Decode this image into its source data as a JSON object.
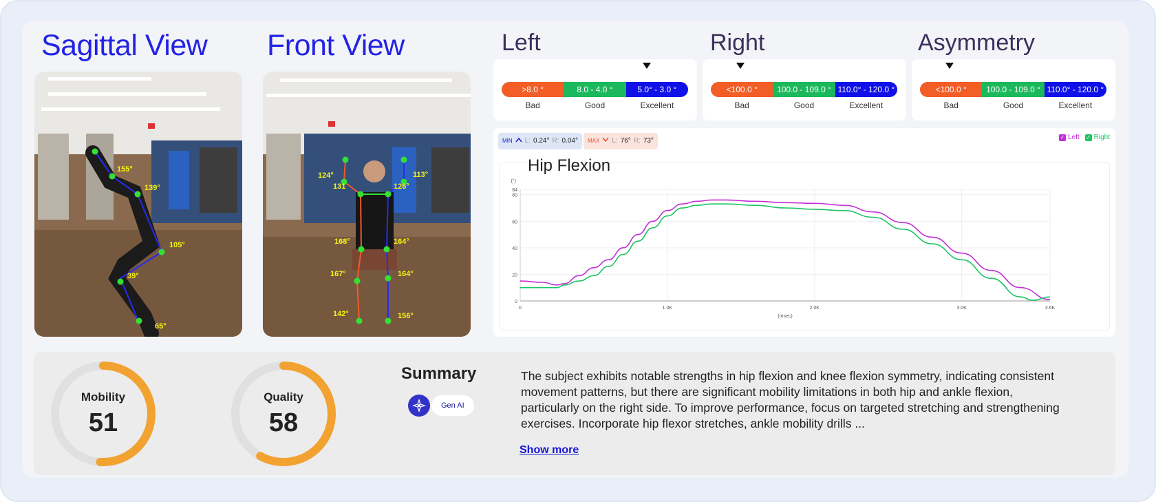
{
  "views": {
    "sagittal_title": "Sagittal View",
    "front_title": "Front View",
    "sagittal_angles": [
      "155°",
      "139°",
      "105°",
      "39°",
      "65°"
    ],
    "front_angles": [
      "124°",
      "131",
      "113°",
      "126°",
      "168°",
      "164°",
      "167°",
      "164°",
      "142°",
      "156°"
    ]
  },
  "ratings": [
    {
      "title": "Left",
      "segments": [
        ">8.0 °",
        "8.0 - 4.0 °",
        "5.0° - 3.0 °"
      ],
      "labels": [
        "Bad",
        "Good",
        "Excellent"
      ],
      "marker_fraction": 0.78
    },
    {
      "title": "Right",
      "segments": [
        "<100.0 °",
        "100.0 - 109.0 °",
        "110.0° - 120.0 °"
      ],
      "labels": [
        "Bad",
        "Good",
        "Excellent"
      ],
      "marker_fraction": 0.16
    },
    {
      "title": "Asymmetry",
      "segments": [
        "<100.0 °",
        "100.0 - 109.0 °",
        "110.0° - 120.0 °"
      ],
      "labels": [
        "Bad",
        "Good",
        "Excellent"
      ],
      "marker_fraction": 0.16
    }
  ],
  "stats": {
    "min": {
      "tag": "MIN",
      "l_label": "L:",
      "l_value": "0.24°",
      "r_label": "R:",
      "r_value": "0.04°"
    },
    "max": {
      "tag": "MAX",
      "l_label": "L:",
      "l_value": "76°",
      "r_label": "R:",
      "r_value": "73°"
    }
  },
  "legend": {
    "left": "Left",
    "right": "Right"
  },
  "colors": {
    "left": "#c12fd8",
    "right": "#1cc464",
    "bad": "#f35d26",
    "good": "#1cb85c",
    "excellent": "#1010e8",
    "gauge": "#f2a230",
    "brand": "#2323e4"
  },
  "chart_data": {
    "type": "line",
    "title": "Hip Flexion",
    "xlabel": "(msec)",
    "ylabel": "(°)",
    "xlim": [
      0,
      3600
    ],
    "ylim": [
      0,
      84
    ],
    "x_ticks": [
      "0",
      "1.0K",
      "2.0K",
      "3.0K",
      "3.6K"
    ],
    "y_ticks": [
      "0",
      "20",
      "40",
      "60",
      "80",
      "84"
    ],
    "series": [
      {
        "name": "Left",
        "x": [
          0,
          150,
          250,
          300,
          400,
          500,
          600,
          700,
          800,
          900,
          1000,
          1100,
          1200,
          1300,
          1400,
          1600,
          1800,
          2000,
          2200,
          2400,
          2600,
          2800,
          3000,
          3200,
          3400,
          3600
        ],
        "y": [
          15,
          14,
          12,
          13,
          19,
          25,
          31,
          40,
          50,
          60,
          68,
          73,
          75,
          76,
          76,
          75,
          74,
          73.5,
          72,
          67,
          59,
          48,
          36,
          23,
          10,
          1
        ]
      },
      {
        "name": "Right",
        "x": [
          0,
          150,
          250,
          300,
          400,
          500,
          600,
          700,
          800,
          900,
          1000,
          1100,
          1200,
          1300,
          1400,
          1600,
          1800,
          2000,
          2200,
          2400,
          2600,
          2800,
          3000,
          3200,
          3400,
          3480,
          3600
        ],
        "y": [
          10,
          10,
          10,
          12,
          15,
          19,
          26,
          35,
          45,
          55,
          64,
          70,
          72,
          73,
          73,
          72,
          70,
          69,
          68,
          63,
          54,
          43,
          31,
          17,
          3,
          0.5,
          3
        ]
      }
    ]
  },
  "scores": {
    "mobility": {
      "label": "Mobility",
      "value": "51",
      "fraction": 0.51
    },
    "quality": {
      "label": "Quality",
      "value": "58",
      "fraction": 0.58
    }
  },
  "summary": {
    "title": "Summary",
    "genai_label": "Gen AI",
    "text": "The subject exhibits notable strengths in hip flexion and knee flexion symmetry, indicating consistent movement patterns, but there are significant mobility limitations in both hip and ankle flexion, particularly on the right side. To improve performance, focus on targeted stretching and strengthening exercises. Incorporate hip flexor stretches, ankle mobility drills ...",
    "show_more": "Show more"
  }
}
